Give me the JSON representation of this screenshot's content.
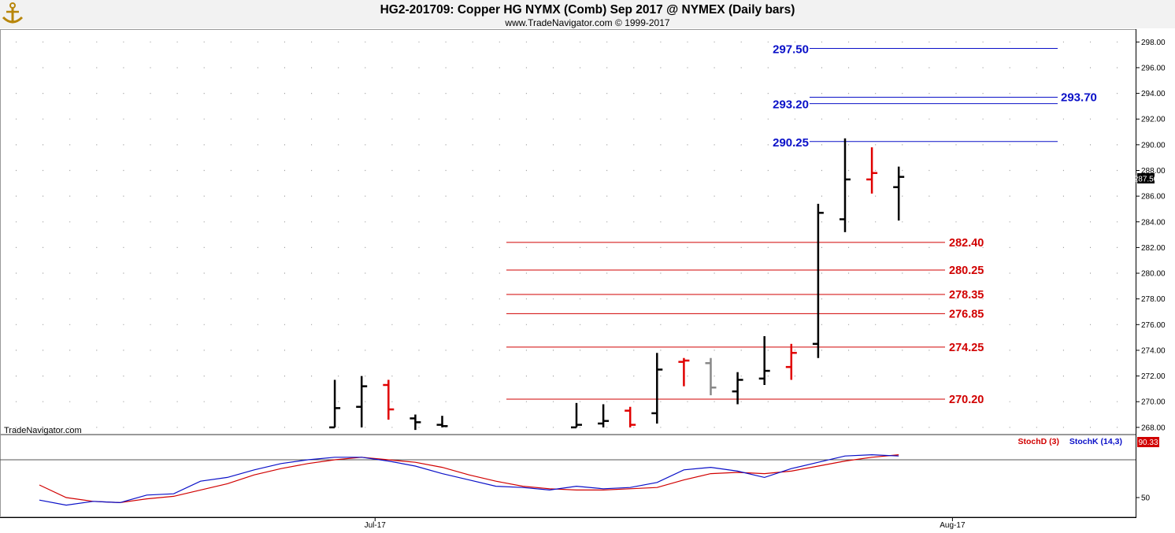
{
  "header": {
    "title": "HG2-201709:  Copper HG NYMX (Comb) Sep 2017 @ NYMEX  (Daily bars)",
    "copyright": "www.TradeNavigator.com © 1999-2017"
  },
  "watermark": "TradeNavigator.com",
  "icon": "anchor-icon",
  "colors": {
    "up_bar": "#000000",
    "down_bar": "#e00000",
    "neutral_bar": "#888888",
    "blue_level": "#0a10c8",
    "red_level": "#d10000",
    "stochK": "#0a10c8",
    "stochD": "#d10000"
  },
  "chart_data": [
    {
      "type": "ohlc",
      "ylim": [
        267.5,
        299.0
      ],
      "y_ticks": [
        "268.00",
        "270.00",
        "272.00",
        "274.00",
        "276.00",
        "278.00",
        "280.00",
        "282.00",
        "284.00",
        "286.00",
        "288.00",
        "290.00",
        "292.00",
        "294.00",
        "296.00",
        "298.00"
      ],
      "x_ticks": [
        {
          "label": "Jul-17",
          "index": 12.5
        },
        {
          "label": "Aug-17",
          "index": 34
        }
      ],
      "last_price": "287.50",
      "bars": [
        {
          "i": 11,
          "o": 268.0,
          "h": 271.7,
          "l": 268.0,
          "c": 269.5,
          "color": "black"
        },
        {
          "i": 12,
          "o": 269.6,
          "h": 272.0,
          "l": 268.0,
          "c": 271.2,
          "color": "black"
        },
        {
          "i": 13,
          "o": 271.3,
          "h": 271.7,
          "l": 268.6,
          "c": 269.4,
          "color": "red"
        },
        {
          "i": 14,
          "o": 268.7,
          "h": 269.0,
          "l": 267.8,
          "c": 268.4,
          "color": "black"
        },
        {
          "i": 15,
          "o": 268.2,
          "h": 268.9,
          "l": 268.0,
          "c": 268.1,
          "color": "black"
        },
        {
          "i": 20,
          "o": 268.0,
          "h": 269.9,
          "l": 268.0,
          "c": 268.2,
          "color": "black"
        },
        {
          "i": 21,
          "o": 268.3,
          "h": 269.8,
          "l": 268.0,
          "c": 268.5,
          "color": "black"
        },
        {
          "i": 22,
          "o": 269.3,
          "h": 269.6,
          "l": 268.0,
          "c": 268.2,
          "color": "red"
        },
        {
          "i": 23,
          "o": 269.1,
          "h": 273.8,
          "l": 268.3,
          "c": 272.5,
          "color": "black"
        },
        {
          "i": 24,
          "o": 273.1,
          "h": 273.4,
          "l": 271.2,
          "c": 273.2,
          "color": "red"
        },
        {
          "i": 25,
          "o": 273.0,
          "h": 273.4,
          "l": 270.5,
          "c": 271.1,
          "color": "gray"
        },
        {
          "i": 26,
          "o": 270.8,
          "h": 272.3,
          "l": 269.8,
          "c": 271.7,
          "color": "black"
        },
        {
          "i": 27,
          "o": 271.8,
          "h": 275.1,
          "l": 271.3,
          "c": 272.4,
          "color": "black"
        },
        {
          "i": 28,
          "o": 272.7,
          "h": 274.5,
          "l": 271.7,
          "c": 273.8,
          "color": "red"
        },
        {
          "i": 29,
          "o": 274.5,
          "h": 285.4,
          "l": 273.4,
          "c": 284.7,
          "color": "black"
        },
        {
          "i": 30,
          "o": 284.2,
          "h": 290.5,
          "l": 283.2,
          "c": 287.3,
          "color": "black"
        },
        {
          "i": 31,
          "o": 287.3,
          "h": 289.8,
          "l": 286.2,
          "c": 287.8,
          "color": "red"
        },
        {
          "i": 32,
          "o": 286.7,
          "h": 288.3,
          "l": 284.1,
          "c": 287.5,
          "color": "black"
        }
      ],
      "levels_blue": [
        {
          "value": 297.5,
          "label": "297.50"
        },
        {
          "value": 293.2,
          "label": "293.20"
        },
        {
          "value": 293.7,
          "label": "293.70"
        },
        {
          "value": 290.25,
          "label": "290.25"
        }
      ],
      "levels_red": [
        {
          "value": 282.4,
          "label": "282.40"
        },
        {
          "value": 280.25,
          "label": "280.25"
        },
        {
          "value": 278.35,
          "label": "278.35"
        },
        {
          "value": 276.85,
          "label": "276.85"
        },
        {
          "value": 274.25,
          "label": "274.25"
        },
        {
          "value": 270.2,
          "label": "270.20"
        }
      ]
    },
    {
      "type": "line",
      "ylim": [
        35,
        100
      ],
      "y_ticks": [
        "50"
      ],
      "reference_level": 80,
      "last_value": "90.33",
      "x": [
        0,
        1,
        2,
        3,
        4,
        5,
        6,
        7,
        8,
        9,
        10,
        11,
        12,
        13,
        14,
        15,
        16,
        17,
        18,
        19,
        20,
        21,
        22,
        23,
        24,
        25,
        26,
        27,
        28,
        29,
        30,
        31,
        32
      ],
      "series": [
        {
          "name": "StochD (3)",
          "values": [
            60,
            50,
            47,
            46,
            49,
            51,
            56,
            61,
            68,
            73,
            77,
            80,
            82,
            80,
            78,
            74,
            68,
            63,
            59,
            57,
            56,
            56,
            57,
            58,
            64,
            69,
            70,
            69,
            71,
            75,
            79,
            82,
            84
          ]
        },
        {
          "name": "StochK (14,3)",
          "values": [
            48,
            44,
            47,
            46,
            52,
            53,
            63,
            66,
            72,
            77,
            80,
            82,
            82,
            79,
            75,
            69,
            64,
            59,
            58,
            56,
            59,
            57,
            58,
            62,
            72,
            74,
            71,
            66,
            73,
            78,
            83,
            84,
            83
          ]
        }
      ]
    }
  ]
}
